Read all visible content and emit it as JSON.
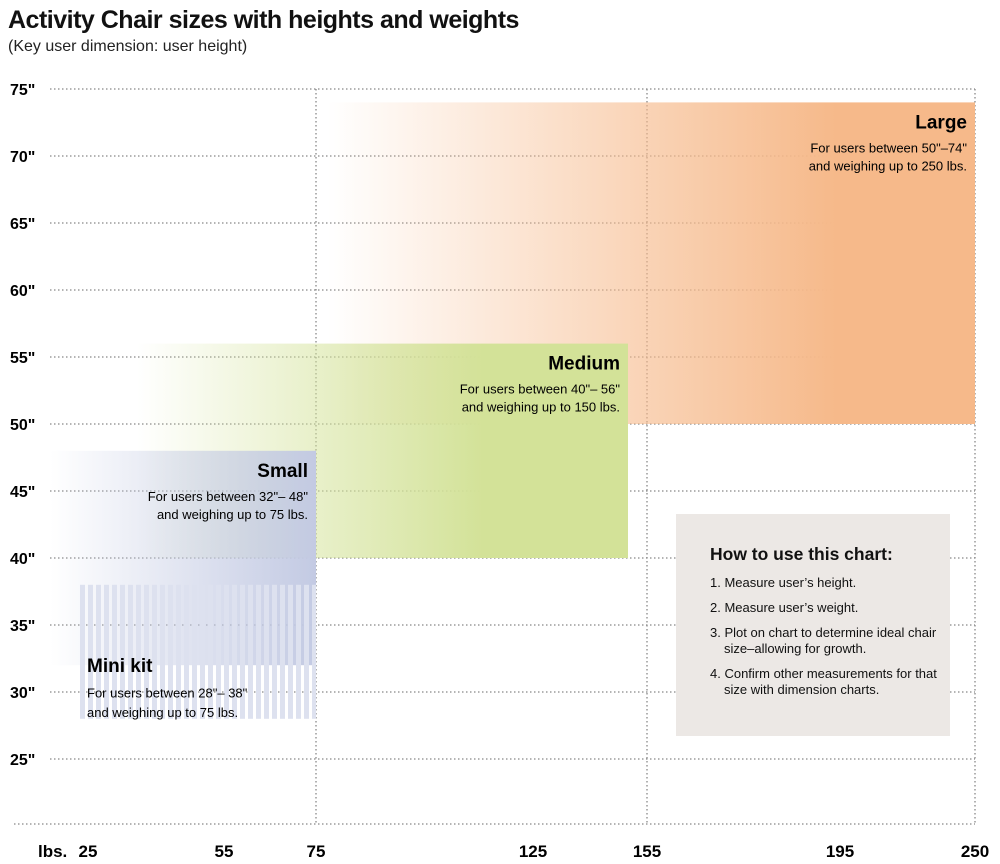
{
  "chart_data": {
    "type": "area",
    "title": "Activity Chair sizes with heights and weights",
    "subtitle": "(Key user dimension: user height)",
    "xlabel": "lbs.",
    "x_ticks": [
      25,
      55,
      75,
      125,
      155,
      195,
      250
    ],
    "y_ticks": [
      "75\"",
      "70\"",
      "65\"",
      "60\"",
      "55\"",
      "50\"",
      "45\"",
      "40\"",
      "35\"",
      "30\"",
      "25\""
    ],
    "y_tick_values": [
      75,
      70,
      65,
      60,
      55,
      50,
      45,
      40,
      35,
      30,
      25
    ],
    "ylim": [
      20,
      75
    ],
    "grid": true,
    "regions": [
      {
        "name": "Large",
        "min_height": 50,
        "max_height": 74,
        "max_weight": 250,
        "color": "#f6b98a",
        "desc1": "For users between 50\"–74\"",
        "desc2": "and weighing up to 250 lbs."
      },
      {
        "name": "Medium",
        "min_height": 40,
        "max_height": 56,
        "max_weight": 150,
        "color": "#d3e298",
        "desc1": "For users between 40\"– 56\"",
        "desc2": "and weighing up to 150 lbs."
      },
      {
        "name": "Small",
        "min_height": 32,
        "max_height": 48,
        "max_weight": 75,
        "color": "#c3cae3",
        "desc1": "For users between 32\"– 48\"",
        "desc2": "and weighing up to 75 lbs."
      },
      {
        "name": "Mini kit",
        "min_height": 28,
        "max_height": 38,
        "max_weight": 75,
        "color": "#dde1ef",
        "desc1": "For users between 28\"– 38\"",
        "desc2": "and weighing up to 75 lbs."
      }
    ]
  },
  "howto": {
    "title": "How to use this chart:",
    "steps": [
      "1. Measure user’s height.",
      "2. Measure user’s weight.",
      "3. Plot on chart to determine ideal chair size–allowing for growth.",
      "4. Confirm other measurements for that size with dimension charts."
    ]
  }
}
